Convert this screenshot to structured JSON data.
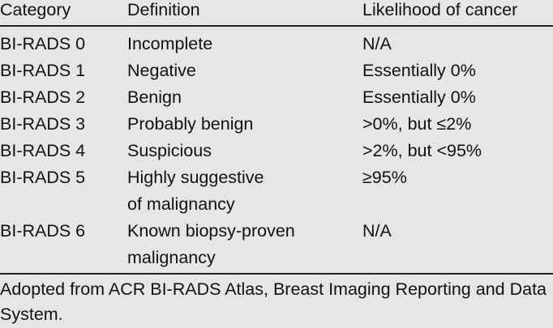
{
  "table": {
    "headers": [
      "Category",
      "Definition",
      "Likelihood of cancer"
    ],
    "rows": [
      {
        "category": "BI-RADS 0",
        "definition": [
          "Incomplete"
        ],
        "likelihood": "N/A"
      },
      {
        "category": "BI-RADS 1",
        "definition": [
          "Negative"
        ],
        "likelihood": "Essentially 0%"
      },
      {
        "category": "BI-RADS 2",
        "definition": [
          "Benign"
        ],
        "likelihood": "Essentially 0%"
      },
      {
        "category": "BI-RADS 3",
        "definition": [
          "Probably benign"
        ],
        "likelihood": ">0%, but ≤2%"
      },
      {
        "category": "BI-RADS 4",
        "definition": [
          "Suspicious"
        ],
        "likelihood": ">2%, but <95%"
      },
      {
        "category": "BI-RADS 5",
        "definition": [
          "Highly suggestive",
          "of malignancy"
        ],
        "likelihood": "≥95%"
      },
      {
        "category": "BI-RADS 6",
        "definition": [
          "Known biopsy-proven",
          "malignancy"
        ],
        "likelihood": "N/A"
      }
    ],
    "footnote": "Adopted from ACR BI-RADS Atlas, Breast Imaging Reporting and Data System."
  }
}
